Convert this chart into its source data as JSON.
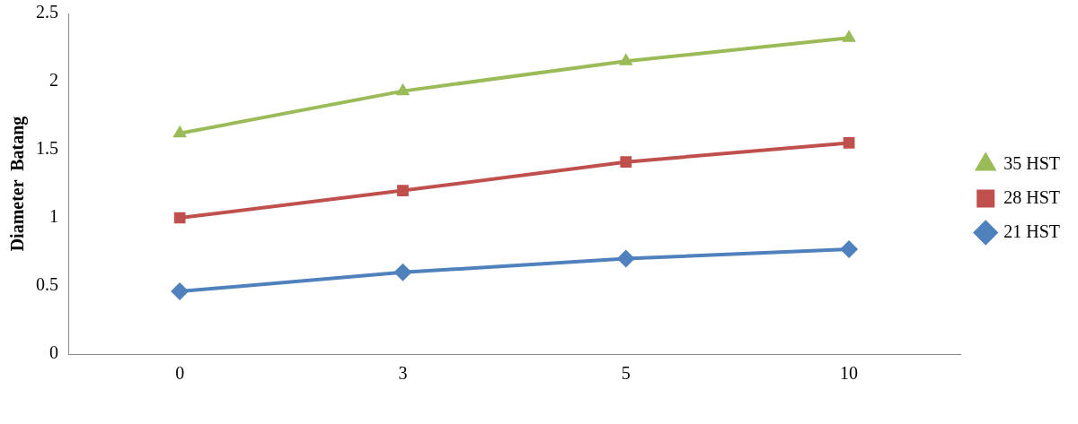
{
  "chart_data": {
    "type": "line",
    "ylabel": "Diameter  Batang",
    "categories": [
      "0",
      "3",
      "5",
      "10"
    ],
    "series": [
      {
        "name": "35 HST",
        "color": "#9bbb59",
        "marker": "triangle",
        "values": [
          1.62,
          1.93,
          2.15,
          2.32
        ]
      },
      {
        "name": "28 HST",
        "color": "#c0504d",
        "marker": "square",
        "values": [
          1.0,
          1.2,
          1.41,
          1.55
        ]
      },
      {
        "name": "21 HST",
        "color": "#4f81bd",
        "marker": "diamond",
        "values": [
          0.46,
          0.6,
          0.7,
          0.77
        ]
      }
    ],
    "ylim": [
      0,
      2.5
    ],
    "yticks": [
      0,
      0.5,
      1,
      1.5,
      2,
      2.5
    ],
    "grid": false,
    "legend": "right",
    "line_style": "solid"
  }
}
